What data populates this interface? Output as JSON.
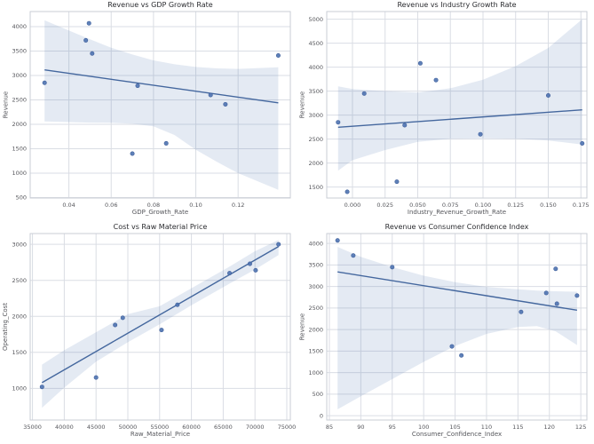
{
  "style": {
    "background": "#ffffff",
    "plot_background": "#ffffff",
    "grid_color": "#dadde4",
    "spine_color": "#c9cdd5",
    "point_color": "#4c72b0",
    "point_edge_color": "#3f5f9b",
    "line_color": "#44679e",
    "band_color": "#4c72b0",
    "band_opacity": 0.15,
    "tick_text_color": "#55565b",
    "title_text_color": "#2b2c30"
  },
  "chart_data": [
    {
      "type": "scatter",
      "title": "Revenue vs GDP Growth Rate",
      "xlabel": "GDP_Growth_Rate",
      "ylabel": "Revenue",
      "grid": true,
      "legend_position": "none",
      "xlim": [
        0.0217,
        0.1447
      ],
      "ylim": [
        490,
        4310
      ],
      "xticks": {
        "values": [
          0.04,
          0.06,
          0.08,
          0.1,
          0.12
        ],
        "labels": [
          "0.04",
          "0.06",
          "0.08",
          "0.10",
          "0.12"
        ]
      },
      "yticks": {
        "values": [
          500,
          1000,
          1500,
          2000,
          2500,
          3000,
          3500,
          4000
        ],
        "labels": [
          "500",
          "1000",
          "1500",
          "2000",
          "2500",
          "3000",
          "3500",
          "4000"
        ]
      },
      "points": [
        [
          0.0285,
          2850
        ],
        [
          0.048,
          3720
        ],
        [
          0.0495,
          4070
        ],
        [
          0.051,
          3450
        ],
        [
          0.07,
          1400
        ],
        [
          0.0725,
          2790
        ],
        [
          0.086,
          1610
        ],
        [
          0.107,
          2600
        ],
        [
          0.114,
          2410
        ],
        [
          0.139,
          3410
        ]
      ],
      "regression_line": {
        "x": [
          0.0285,
          0.139
        ],
        "y": [
          3115,
          2440
        ]
      },
      "ci_band": {
        "x": [
          0.0285,
          0.04,
          0.05,
          0.06,
          0.07,
          0.08,
          0.09,
          0.1,
          0.11,
          0.12,
          0.139
        ],
        "upper": [
          4130,
          3920,
          3740,
          3570,
          3430,
          3310,
          3230,
          3175,
          3145,
          3135,
          3170
        ],
        "lower": [
          2060,
          2045,
          2035,
          2030,
          2010,
          1960,
          1780,
          1480,
          1230,
          1000,
          660
        ]
      }
    },
    {
      "type": "scatter",
      "title": "Revenue vs Industry Growth Rate",
      "xlabel": "Industry_Revenue_Growth_Rate",
      "ylabel": "Revenue",
      "grid": true,
      "legend_position": "none",
      "xlim": [
        -0.0197,
        0.1796
      ],
      "ylim": [
        1270,
        5160
      ],
      "xticks": {
        "values": [
          0.0,
          0.025,
          0.05,
          0.075,
          0.1,
          0.125,
          0.15,
          0.175
        ],
        "labels": [
          "0.000",
          "0.025",
          "0.050",
          "0.075",
          "0.100",
          "0.125",
          "0.150",
          "0.175"
        ]
      },
      "yticks": {
        "values": [
          1500,
          2000,
          2500,
          3000,
          3500,
          4000,
          4500,
          5000
        ],
        "labels": [
          "1500",
          "2000",
          "2500",
          "3000",
          "3500",
          "4000",
          "4500",
          "5000"
        ]
      },
      "points": [
        [
          -0.011,
          2850
        ],
        [
          -0.004,
          1400
        ],
        [
          0.009,
          3450
        ],
        [
          0.034,
          1610
        ],
        [
          0.04,
          2790
        ],
        [
          0.052,
          4080
        ],
        [
          0.064,
          3730
        ],
        [
          0.098,
          2600
        ],
        [
          0.15,
          3410
        ],
        [
          0.176,
          2410
        ]
      ],
      "regression_line": {
        "x": [
          -0.011,
          0.176
        ],
        "y": [
          2745,
          3110
        ]
      },
      "ci_band": {
        "x": [
          -0.011,
          0.0,
          0.025,
          0.05,
          0.075,
          0.1,
          0.125,
          0.15,
          0.176
        ],
        "upper": [
          3600,
          3545,
          3500,
          3470,
          3560,
          3740,
          4020,
          4400,
          5000
        ],
        "lower": [
          1840,
          2060,
          2270,
          2440,
          2505,
          2515,
          2505,
          2470,
          2385
        ]
      }
    },
    {
      "type": "scatter",
      "title": "Cost vs Raw Material Price",
      "xlabel": "Raw_Material_Price",
      "ylabel": "Operating_Cost",
      "grid": true,
      "legend_position": "none",
      "xlim": [
        34640,
        75560
      ],
      "ylim": [
        560,
        3150
      ],
      "xticks": {
        "values": [
          35000,
          40000,
          45000,
          50000,
          55000,
          60000,
          65000,
          70000,
          75000
        ],
        "labels": [
          "35000",
          "40000",
          "45000",
          "50000",
          "55000",
          "60000",
          "65000",
          "70000",
          "75000"
        ]
      },
      "yticks": {
        "values": [
          1000,
          1500,
          2000,
          2500,
          3000
        ],
        "labels": [
          "1000",
          "1500",
          "2000",
          "2500",
          "3000"
        ]
      },
      "points": [
        [
          36500,
          1020
        ],
        [
          45000,
          1150
        ],
        [
          48000,
          1880
        ],
        [
          49200,
          1980
        ],
        [
          55300,
          1810
        ],
        [
          57800,
          2160
        ],
        [
          66000,
          2600
        ],
        [
          69200,
          2730
        ],
        [
          70100,
          2640
        ],
        [
          73700,
          3000
        ]
      ],
      "regression_line": {
        "x": [
          36500,
          73700
        ],
        "y": [
          1080,
          2970
        ]
      },
      "ci_band": {
        "x": [
          36500,
          40000,
          45000,
          50000,
          55000,
          60000,
          66000,
          70000,
          73700
        ],
        "upper": [
          1330,
          1530,
          1780,
          2030,
          2140,
          2390,
          2690,
          2905,
          3060
        ],
        "lower": [
          730,
          1010,
          1370,
          1640,
          1890,
          2155,
          2455,
          2650,
          2850
        ]
      }
    },
    {
      "type": "scatter",
      "title": "Revenue vs Consumer Confidence Index",
      "xlabel": "Consumer_Confidence_Index",
      "ylabel": "Revenue",
      "grid": true,
      "legend_position": "none",
      "xlim": [
        84.58,
        125.97
      ],
      "ylim": [
        -100,
        4230
      ],
      "xticks": {
        "values": [
          85,
          90,
          95,
          100,
          105,
          110,
          115,
          120,
          125
        ],
        "labels": [
          "85",
          "90",
          "95",
          "100",
          "105",
          "110",
          "115",
          "120",
          "125"
        ]
      },
      "yticks": {
        "values": [
          0,
          500,
          1000,
          1500,
          2000,
          2500,
          3000,
          3500,
          4000
        ],
        "labels": [
          "0",
          "500",
          "1000",
          "1500",
          "2000",
          "2500",
          "3000",
          "3500",
          "4000"
        ]
      },
      "points": [
        [
          86.3,
          4070
        ],
        [
          88.8,
          3720
        ],
        [
          95.0,
          3450
        ],
        [
          104.5,
          1610
        ],
        [
          106.0,
          1400
        ],
        [
          115.5,
          2410
        ],
        [
          119.5,
          2850
        ],
        [
          121.0,
          3410
        ],
        [
          121.2,
          2600
        ],
        [
          124.4,
          2790
        ]
      ],
      "regression_line": {
        "x": [
          86.3,
          124.4
        ],
        "y": [
          3340,
          2450
        ]
      },
      "ci_band": {
        "x": [
          86.3,
          90,
          95,
          100,
          105,
          110,
          115,
          118,
          121,
          124.4
        ],
        "upper": [
          3920,
          3690,
          3450,
          3250,
          3100,
          2990,
          2935,
          2905,
          2890,
          2880
        ],
        "lower": [
          150,
          450,
          850,
          1250,
          1620,
          1900,
          2060,
          2080,
          1960,
          1640
        ]
      }
    }
  ]
}
